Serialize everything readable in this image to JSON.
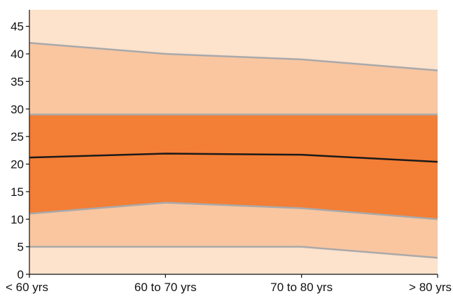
{
  "chart_data": {
    "type": "area",
    "categories": [
      "< 60 yrs",
      "60 to 70 yrs",
      "70 to 80 yrs",
      "> 80 yrs"
    ],
    "x": [
      0,
      1,
      2,
      3
    ],
    "y_ticks": [
      0,
      5,
      10,
      15,
      20,
      25,
      30,
      35,
      40,
      45
    ],
    "ylim": [
      0,
      48
    ],
    "grid": false,
    "legend": "none",
    "title": "",
    "xlabel": "",
    "ylabel": "",
    "series": [
      {
        "role": "p97",
        "values": [
          42,
          40,
          39,
          37
        ]
      },
      {
        "role": "p75",
        "values": [
          29,
          29,
          29,
          29
        ]
      },
      {
        "role": "median",
        "values": [
          21.2,
          21.9,
          21.7,
          20.4
        ]
      },
      {
        "role": "p25",
        "values": [
          11,
          13,
          12,
          10
        ]
      },
      {
        "role": "p3",
        "values": [
          5,
          5,
          5,
          3
        ]
      }
    ],
    "colors": {
      "background": "#fde2cc",
      "outer_band": "#f9c6a0",
      "inner_band": "#f37e35",
      "boundary_line": "#a9a9aa",
      "median_line": "#1a1a1a",
      "axis": "#111111"
    }
  }
}
